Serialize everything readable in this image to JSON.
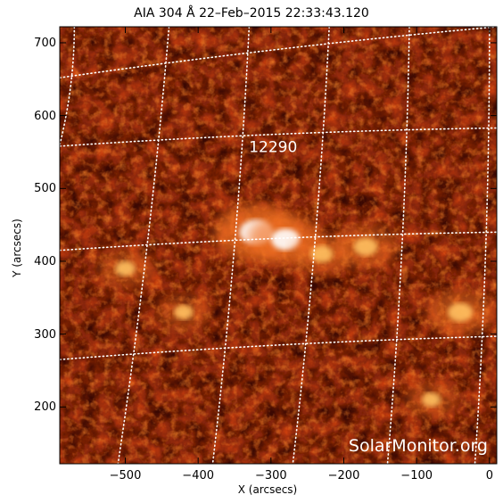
{
  "chart_data": {
    "type": "heatmap",
    "title": "AIA 304 Å 22–Feb–2015 22:33:43.120",
    "xlabel": "X (arcsecs)",
    "ylabel": "Y (arcsecs)",
    "xlim": [
      -590,
      10
    ],
    "ylim": [
      122,
      722
    ],
    "x_ticks": [
      -500,
      -400,
      -300,
      -200,
      -100,
      0
    ],
    "x_tick_labels": [
      "−500",
      "−400",
      "−300",
      "−200",
      "−100",
      "0"
    ],
    "y_ticks": [
      200,
      300,
      400,
      500,
      600,
      700
    ],
    "y_tick_labels": [
      "200",
      "300",
      "400",
      "500",
      "600",
      "700"
    ],
    "annotations": [
      {
        "text": "12290",
        "x": -297,
        "y": 550
      },
      {
        "text": "SolarMonitor.org",
        "x": -210,
        "y": 150
      }
    ],
    "colormap": [
      "#1a0200",
      "#5a0a02",
      "#a0220a",
      "#e0601a",
      "#ffd070",
      "#ffffff"
    ],
    "grid": true,
    "grid_style": "dotted white heliographic lines",
    "bright_regions": [
      {
        "x": -320,
        "y": 440,
        "intensity": 1.0
      },
      {
        "x": -280,
        "y": 430,
        "intensity": 0.8
      },
      {
        "x": -230,
        "y": 410,
        "intensity": 0.55
      },
      {
        "x": -170,
        "y": 420,
        "intensity": 0.6
      },
      {
        "x": -40,
        "y": 330,
        "intensity": 0.65
      },
      {
        "x": -500,
        "y": 390,
        "intensity": 0.45
      },
      {
        "x": -420,
        "y": 330,
        "intensity": 0.4
      },
      {
        "x": -80,
        "y": 210,
        "intensity": 0.4
      }
    ]
  }
}
